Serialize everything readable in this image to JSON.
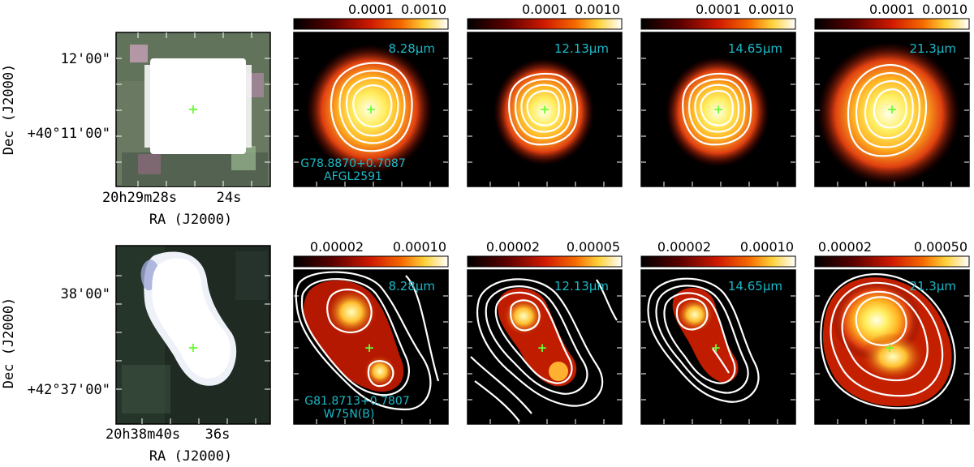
{
  "figure": {
    "rows": [
      {
        "source_name": "G78.8870+0.7087",
        "alt_name": "AFGL2591",
        "dec_axis_label": "Dec (J2000)",
        "ra_axis_label": "RA (J2000)",
        "dec_ticks": [
          "12'00\"",
          "+40°11'00\""
        ],
        "ra_ticks": [
          "20h29m28s",
          "24s"
        ],
        "panels": [
          {
            "wavelength": "8.28μm",
            "cbar_ticks": [
              "0.0001",
              "0.0010"
            ]
          },
          {
            "wavelength": "12.13μm",
            "cbar_ticks": [
              "0.0001",
              "0.0010"
            ]
          },
          {
            "wavelength": "14.65μm",
            "cbar_ticks": [
              "0.0001",
              "0.0010"
            ]
          },
          {
            "wavelength": "21.3μm",
            "cbar_ticks": [
              "0.0001",
              "0.0010"
            ]
          }
        ]
      },
      {
        "source_name": "G81.8713+0.7807",
        "alt_name": "W75N(B)",
        "dec_axis_label": "Dec (J2000)",
        "ra_axis_label": "RA (J2000)",
        "dec_ticks": [
          "38'00\"",
          "+42°37'00\""
        ],
        "ra_ticks": [
          "20h38m40s",
          "36s"
        ],
        "panels": [
          {
            "wavelength": "8.28μm",
            "cbar_ticks": [
              "0.00002",
              "0.00010"
            ]
          },
          {
            "wavelength": "12.13μm",
            "cbar_ticks": [
              "0.00002",
              "0.00005"
            ]
          },
          {
            "wavelength": "14.65μm",
            "cbar_ticks": [
              "0.00002",
              "0.00010"
            ]
          },
          {
            "wavelength": "21.3μm",
            "cbar_ticks": [
              "0.00002",
              "0.00050"
            ]
          }
        ]
      }
    ]
  },
  "colors": {
    "label_cyan": "#19b9c8",
    "marker_green": "#66ff33",
    "contour": "#ffffff",
    "background": "#000000"
  }
}
